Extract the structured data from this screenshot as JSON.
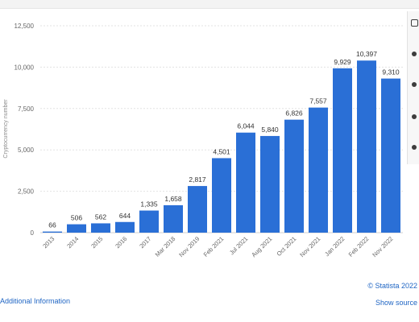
{
  "chart_data": {
    "type": "bar",
    "title": "",
    "xlabel": "",
    "ylabel": "Cryptocurrency number",
    "ylim": [
      0,
      12500
    ],
    "yticks": [
      0,
      2500,
      5000,
      7500,
      10000,
      12500
    ],
    "ytick_labels": [
      "0",
      "2,500",
      "5,000",
      "7,500",
      "10,000",
      "12,500"
    ],
    "grid": true,
    "categories": [
      "2013",
      "2014",
      "2015",
      "2016",
      "2017",
      "Mar 2018",
      "Nov 2019",
      "Feb 2021",
      "Jul 2021",
      "Aug 2021",
      "Oct 2021",
      "Nov 2021",
      "Jan 2022",
      "Feb 2022",
      "Nov 2022"
    ],
    "values": [
      66,
      506,
      562,
      644,
      1335,
      1658,
      2817,
      4501,
      6044,
      5840,
      6826,
      7557,
      9929,
      10397,
      9310
    ],
    "value_labels": [
      "66",
      "506",
      "562",
      "644",
      "1,335",
      "1,658",
      "2,817",
      "4,501",
      "6,044",
      "5,840",
      "6,826",
      "7,557",
      "9,929",
      "10,397",
      "9,310"
    ],
    "bar_color": "#2a6fd6"
  },
  "footer": {
    "credit": "© Statista 2022",
    "show_source": "Show source",
    "additional_info": "Additional Information"
  },
  "toolbar": {
    "icons": [
      "star-icon",
      "bell-icon",
      "download-icon",
      "quote-icon",
      "print-icon"
    ]
  }
}
